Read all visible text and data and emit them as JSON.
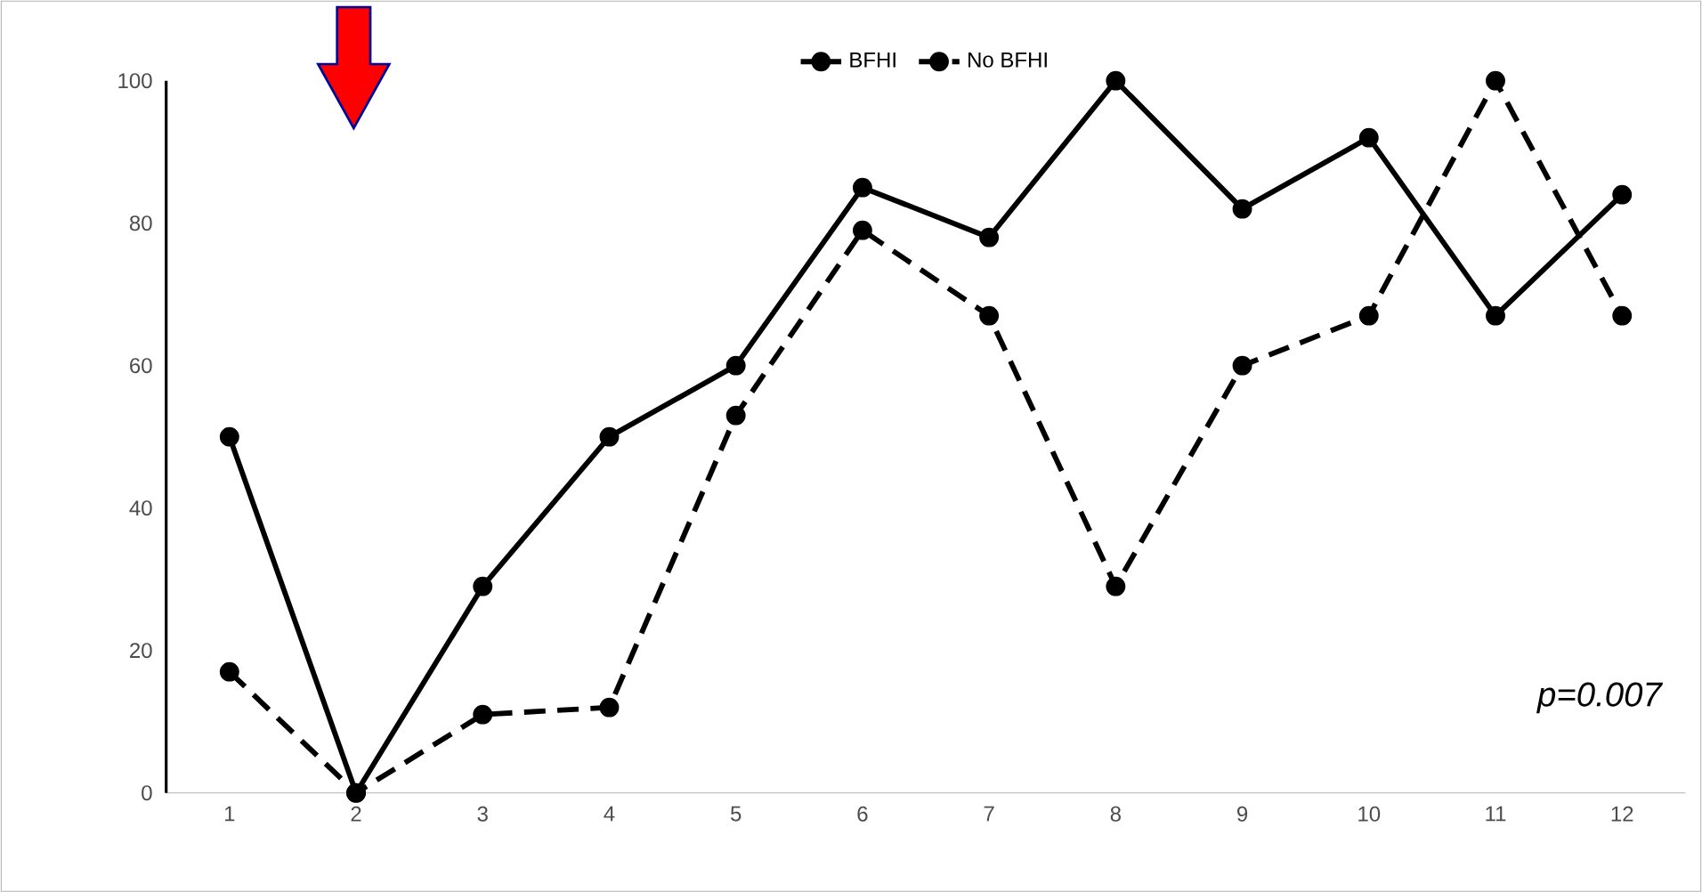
{
  "chart_data": {
    "type": "line",
    "categories": [
      "1",
      "2",
      "3",
      "4",
      "5",
      "6",
      "7",
      "8",
      "9",
      "10",
      "11",
      "12"
    ],
    "series": [
      {
        "name": "BFHI",
        "color": "#000000",
        "line_style": "solid",
        "values": [
          50,
          0,
          29,
          50,
          60,
          85,
          78,
          100,
          82,
          92,
          67,
          84
        ]
      },
      {
        "name": "No BFHI",
        "color": "#000000",
        "line_style": "dashed",
        "values": [
          17,
          0,
          11,
          12,
          53,
          79,
          67,
          29,
          60,
          67,
          100,
          67
        ]
      }
    ],
    "ylim": [
      0,
      100
    ],
    "yticks": [
      0,
      20,
      40,
      60,
      80,
      100
    ],
    "marker": "circle",
    "legend": "top",
    "grid": false,
    "annotations": [
      "p=0.007"
    ]
  }
}
